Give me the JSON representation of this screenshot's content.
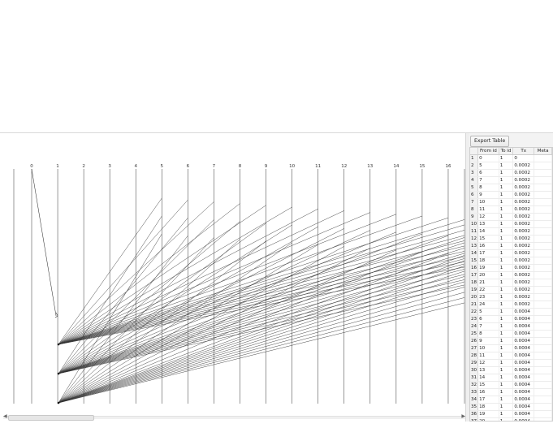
{
  "graph": {
    "column_labels": [
      "0",
      "1",
      "2",
      "3",
      "4",
      "5",
      "6",
      "7",
      "8",
      "9",
      "10",
      "11",
      "12",
      "13",
      "14",
      "15",
      "16"
    ]
  },
  "side_panel": {
    "export_label": "Export Table",
    "table": {
      "headers": [
        "From id",
        "To id",
        "Tx",
        "Meta"
      ],
      "rows": [
        [
          "1",
          "0",
          "1",
          "0",
          ""
        ],
        [
          "2",
          "5",
          "1",
          "0.0002",
          ""
        ],
        [
          "3",
          "6",
          "1",
          "0.0002",
          ""
        ],
        [
          "4",
          "7",
          "1",
          "0.0002",
          ""
        ],
        [
          "5",
          "8",
          "1",
          "0.0002",
          ""
        ],
        [
          "6",
          "9",
          "1",
          "0.0002",
          ""
        ],
        [
          "7",
          "10",
          "1",
          "0.0002",
          ""
        ],
        [
          "8",
          "11",
          "1",
          "0.0002",
          ""
        ],
        [
          "9",
          "12",
          "1",
          "0.0002",
          ""
        ],
        [
          "10",
          "13",
          "1",
          "0.0002",
          ""
        ],
        [
          "11",
          "14",
          "1",
          "0.0002",
          ""
        ],
        [
          "12",
          "15",
          "1",
          "0.0002",
          ""
        ],
        [
          "13",
          "16",
          "1",
          "0.0002",
          ""
        ],
        [
          "14",
          "17",
          "1",
          "0.0002",
          ""
        ],
        [
          "15",
          "18",
          "1",
          "0.0002",
          ""
        ],
        [
          "16",
          "19",
          "1",
          "0.0002",
          ""
        ],
        [
          "17",
          "20",
          "1",
          "0.0002",
          ""
        ],
        [
          "18",
          "21",
          "1",
          "0.0002",
          ""
        ],
        [
          "19",
          "22",
          "1",
          "0.0002",
          ""
        ],
        [
          "20",
          "23",
          "1",
          "0.0002",
          ""
        ],
        [
          "21",
          "24",
          "1",
          "0.0002",
          ""
        ],
        [
          "22",
          "5",
          "1",
          "0.0004",
          ""
        ],
        [
          "23",
          "6",
          "1",
          "0.0004",
          ""
        ],
        [
          "24",
          "7",
          "1",
          "0.0004",
          ""
        ],
        [
          "25",
          "8",
          "1",
          "0.0004",
          ""
        ],
        [
          "26",
          "9",
          "1",
          "0.0004",
          ""
        ],
        [
          "27",
          "10",
          "1",
          "0.0004",
          ""
        ],
        [
          "28",
          "11",
          "1",
          "0.0004",
          ""
        ],
        [
          "29",
          "12",
          "1",
          "0.0004",
          ""
        ],
        [
          "30",
          "13",
          "1",
          "0.0004",
          ""
        ],
        [
          "31",
          "14",
          "1",
          "0.0004",
          ""
        ],
        [
          "32",
          "15",
          "1",
          "0.0004",
          ""
        ],
        [
          "33",
          "16",
          "1",
          "0.0004",
          ""
        ],
        [
          "34",
          "17",
          "1",
          "0.0004",
          ""
        ],
        [
          "35",
          "18",
          "1",
          "0.0004",
          ""
        ],
        [
          "36",
          "19",
          "1",
          "0.0004",
          ""
        ],
        [
          "37",
          "20",
          "1",
          "0.0004",
          ""
        ],
        [
          "38",
          "21",
          "1",
          "0.0004",
          ""
        ],
        [
          "39",
          "22",
          "1",
          "0.0004",
          ""
        ]
      ]
    }
  },
  "colors": {
    "line": "#333333",
    "axis": "#555555",
    "panel_bg": "#f3f3f3"
  },
  "icons": {
    "scroll_left": "triangle-left-icon",
    "scroll_right": "triangle-right-icon"
  }
}
